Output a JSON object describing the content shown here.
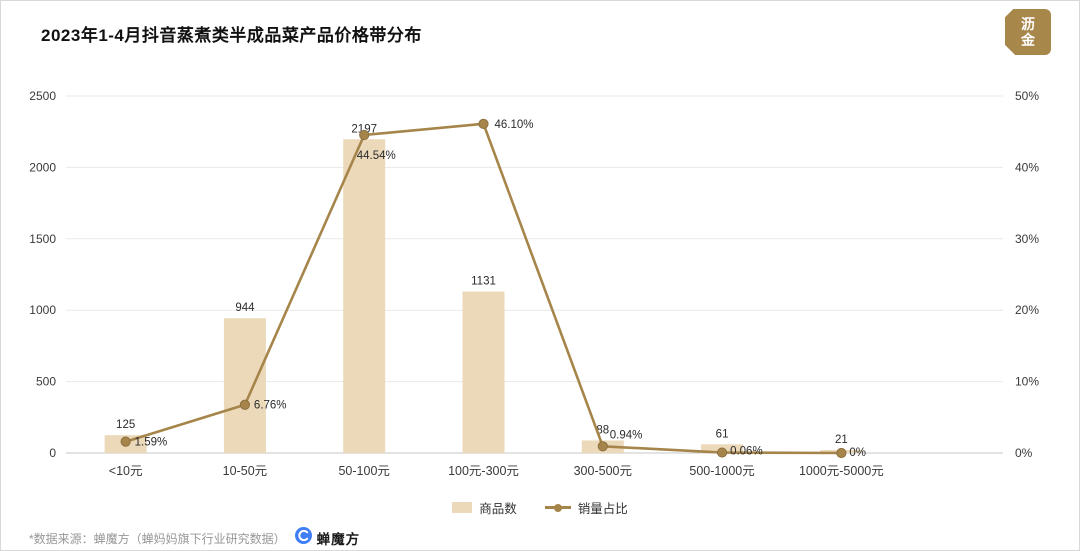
{
  "header": {
    "title": "2023年1-4月抖音蒸煮类半成品菜产品价格带分布",
    "logo": {
      "line1": "沥",
      "line2": "金",
      "color": "#a8874b"
    }
  },
  "chart_data": {
    "type": "bar",
    "title": "2023年1-4月抖音蒸煮类半成品菜产品价格带分布",
    "categories": [
      "<10元",
      "10-50元",
      "50-100元",
      "100元-300元",
      "300-500元",
      "500-1000元",
      "1000元-5000元"
    ],
    "series": [
      {
        "name": "商品数",
        "type": "bar",
        "axis": "left",
        "color": "#ebd9ba",
        "values": [
          125,
          944,
          2197,
          1131,
          88,
          61,
          21
        ],
        "data_labels": [
          "125",
          "944",
          "2197",
          "1131",
          "88",
          "61",
          "21"
        ]
      },
      {
        "name": "销量占比",
        "type": "line",
        "axis": "right",
        "color": "#a6854a",
        "values": [
          1.59,
          6.76,
          44.54,
          46.1,
          0.94,
          0.06,
          0
        ],
        "data_labels": [
          "1.59%",
          "6.76%",
          "44.54%",
          "46.10%",
          "0.94%",
          "0.06%",
          "0%"
        ]
      }
    ],
    "left_axis": {
      "min": 0,
      "max": 2500,
      "tick_labels": [
        "0",
        "500",
        "1000",
        "1500",
        "2000",
        "2500"
      ]
    },
    "right_axis": {
      "min": 0,
      "max": 50,
      "tick_labels": [
        "0%",
        "10%",
        "20%",
        "30%",
        "40%",
        "50%"
      ]
    },
    "grid": true,
    "legend_position": "bottom"
  },
  "footer": {
    "source_text": "*数据来源：蝉魔方（蝉妈妈旗下行业研究数据）",
    "brand_name": "蝉魔方"
  }
}
